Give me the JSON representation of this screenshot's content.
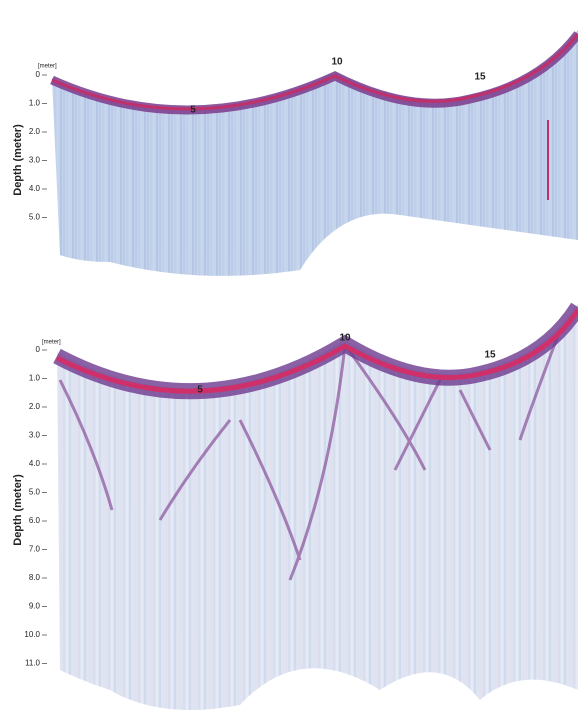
{
  "top_panel": {
    "unit_label": "[meter]",
    "y_axis_label": "Depth (meter)",
    "depth_ticks": [
      "0",
      "1.0",
      "2.0",
      "3.0",
      "4.0",
      "5.0"
    ],
    "trace_markers": [
      "5",
      "10",
      "15"
    ]
  },
  "bottom_panel": {
    "unit_label": "[meter]",
    "y_axis_label": "Depth (meter)",
    "depth_ticks": [
      "0",
      "1.0",
      "2.0",
      "3.0",
      "4.0",
      "5.0",
      "6.0",
      "7.0",
      "8.0",
      "9.0",
      "10.0",
      "11.0"
    ],
    "trace_markers": [
      "5",
      "10",
      "15"
    ]
  }
}
